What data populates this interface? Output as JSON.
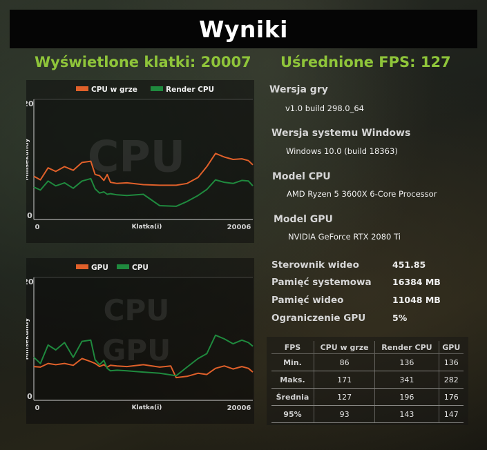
{
  "title": "Wyniki",
  "frames_rendered": "Wyświetlone klatki: 20007",
  "average_fps": "Uśrednione FPS: 127",
  "info": {
    "game_version_label": "Wersja gry",
    "game_version": "v1.0 build 298.0_64",
    "windows_label": "Wersja systemu Windows",
    "windows": "Windows 10.0 (build 18363)",
    "cpu_label": "Model CPU",
    "cpu": "AMD Ryzen 5 3600X 6-Core Processor",
    "gpu_label": "Model GPU",
    "gpu": "NVIDIA GeForce RTX 2080 Ti"
  },
  "specs": [
    {
      "label": "Sterownik wideo",
      "value": "451.85"
    },
    {
      "label": "Pamięć systemowa",
      "value": "16384 MB"
    },
    {
      "label": "Pamięć wideo",
      "value": "11048 MB"
    },
    {
      "label": "Ograniczenie GPU",
      "value": "5%"
    }
  ],
  "stats_table": {
    "headers": [
      "FPS",
      "CPU w grze",
      "Render CPU",
      "GPU"
    ],
    "rows": [
      [
        "Min.",
        "86",
        "136",
        "136"
      ],
      [
        "Maks.",
        "171",
        "341",
        "282"
      ],
      [
        "Średnia",
        "127",
        "196",
        "176"
      ],
      [
        "95%",
        "93",
        "143",
        "147"
      ]
    ]
  },
  "colors": {
    "accent_green": "#8fc53a",
    "orange_series": "#e0602a",
    "green_series": "#1f8a3e"
  },
  "chart_data": [
    {
      "type": "line",
      "watermark": "CPU",
      "xlabel": "Klatka(i)",
      "ylabel": "Milisekundy",
      "ylim": [
        0,
        20
      ],
      "xlim": [
        0,
        20006
      ],
      "y_ticks": [
        "20",
        "0"
      ],
      "x_ticks": [
        "0",
        "20006"
      ],
      "legend": "top-center",
      "series": [
        {
          "name": "CPU w grze",
          "color": "#e0602a",
          "x": [
            0,
            600,
            1300,
            2000,
            2800,
            3600,
            4400,
            5200,
            5600,
            6000,
            6400,
            6700,
            7000,
            7600,
            8500,
            10000,
            11500,
            13000,
            14000,
            15000,
            15800,
            16600,
            17400,
            18200,
            19000,
            19600,
            20006
          ],
          "y": [
            7.2,
            6.6,
            8.6,
            8.0,
            8.8,
            8.2,
            9.5,
            9.7,
            7.5,
            7.3,
            6.5,
            7.5,
            6.2,
            6.0,
            6.1,
            5.8,
            5.7,
            5.7,
            6.0,
            7.0,
            8.8,
            11.0,
            10.4,
            10.0,
            10.1,
            9.8,
            9.1
          ]
        },
        {
          "name": "Render CPU",
          "color": "#1f8a3e",
          "x": [
            0,
            600,
            1300,
            2000,
            2800,
            3600,
            4400,
            5200,
            5600,
            6000,
            6400,
            6700,
            7000,
            7600,
            8500,
            10000,
            11500,
            13000,
            14000,
            15000,
            15800,
            16600,
            17400,
            18200,
            19000,
            19600,
            20006
          ],
          "y": [
            5.4,
            4.9,
            6.4,
            5.6,
            6.1,
            5.2,
            6.4,
            6.8,
            5.1,
            4.4,
            4.6,
            4.2,
            4.3,
            4.1,
            4.0,
            4.2,
            2.3,
            2.2,
            3.0,
            4.0,
            5.0,
            6.6,
            6.2,
            6.0,
            6.5,
            6.4,
            5.6
          ]
        }
      ]
    },
    {
      "type": "line",
      "watermark": "CPU GPU",
      "xlabel": "Klatka(i)",
      "ylabel": "Milisekundy",
      "ylim": [
        0,
        20
      ],
      "xlim": [
        0,
        20006
      ],
      "y_ticks": [
        "20",
        "0"
      ],
      "x_ticks": [
        "0",
        "20006"
      ],
      "legend": "top-center",
      "series": [
        {
          "name": "GPU",
          "color": "#e0602a",
          "x": [
            0,
            600,
            1300,
            2000,
            2800,
            3600,
            4400,
            5200,
            5600,
            6000,
            6400,
            6700,
            7000,
            7600,
            8500,
            10000,
            11500,
            12500,
            13000,
            14000,
            15000,
            15800,
            16600,
            17400,
            18200,
            19000,
            19600,
            20006
          ],
          "y": [
            5.5,
            5.4,
            6.0,
            5.8,
            6.0,
            5.7,
            6.8,
            6.3,
            6.0,
            5.5,
            5.8,
            5.4,
            5.7,
            5.6,
            5.5,
            5.8,
            5.4,
            5.6,
            3.7,
            3.9,
            4.4,
            4.2,
            5.2,
            5.6,
            5.1,
            5.5,
            5.2,
            4.6
          ]
        },
        {
          "name": "CPU",
          "color": "#1f8a3e",
          "x": [
            0,
            600,
            1300,
            2000,
            2800,
            3600,
            4400,
            5200,
            5600,
            6000,
            6400,
            6700,
            7000,
            7600,
            8500,
            10000,
            11500,
            13000,
            14000,
            15000,
            15800,
            16600,
            17400,
            18200,
            19000,
            19600,
            20006
          ],
          "y": [
            7.0,
            6.0,
            9.0,
            8.2,
            9.4,
            7.0,
            9.6,
            9.8,
            6.6,
            5.8,
            6.5,
            5.2,
            4.8,
            4.9,
            4.8,
            4.6,
            4.4,
            4.0,
            5.4,
            6.8,
            7.6,
            10.6,
            10.0,
            9.2,
            9.8,
            9.4,
            8.8
          ]
        }
      ]
    }
  ]
}
